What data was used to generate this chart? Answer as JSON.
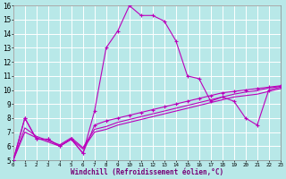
{
  "xlabel": "Windchill (Refroidissement éolien,°C)",
  "bg_color": "#b8e8e8",
  "grid_color": "#ffffff",
  "line_color": "#bb00bb",
  "xmin": 0,
  "xmax": 23,
  "ymin": 5,
  "ymax": 16,
  "series": [
    [
      5.0,
      8.0,
      6.5,
      6.5,
      6.0,
      6.5,
      5.5,
      8.5,
      13.0,
      14.2,
      16.0,
      15.3,
      15.3,
      14.9,
      13.5,
      11.0,
      10.8,
      9.2,
      9.5,
      9.2,
      8.0,
      7.5,
      10.0,
      10.2
    ],
    [
      5.0,
      8.0,
      6.5,
      6.5,
      6.0,
      6.5,
      5.5,
      7.5,
      7.8,
      8.0,
      8.2,
      8.4,
      8.6,
      8.8,
      9.0,
      9.2,
      9.4,
      9.6,
      9.8,
      9.9,
      10.0,
      10.1,
      10.2,
      10.3
    ],
    [
      5.0,
      7.0,
      6.6,
      6.3,
      6.0,
      6.5,
      5.8,
      7.0,
      7.2,
      7.5,
      7.7,
      7.9,
      8.1,
      8.3,
      8.5,
      8.7,
      8.9,
      9.1,
      9.3,
      9.5,
      9.6,
      9.7,
      9.9,
      10.1
    ],
    [
      5.0,
      7.3,
      6.7,
      6.4,
      6.1,
      6.6,
      5.9,
      7.2,
      7.4,
      7.7,
      7.9,
      8.1,
      8.3,
      8.5,
      8.7,
      8.9,
      9.1,
      9.3,
      9.5,
      9.7,
      9.85,
      9.95,
      10.15,
      10.25
    ]
  ]
}
